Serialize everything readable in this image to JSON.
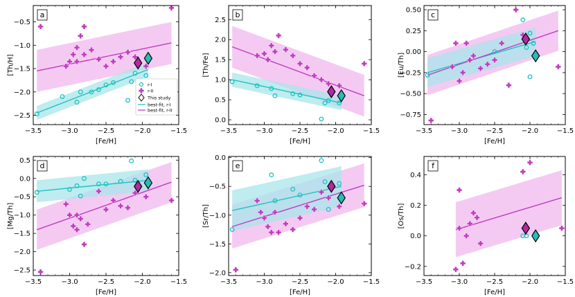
{
  "colors": {
    "r1": "#1fc2c2",
    "r1_band": "#a8e6ea",
    "r2": "#c23cc2",
    "r2_band": "#f0b8ee",
    "star_r1": "#2bbab6",
    "star_r2": "#b02aa0"
  },
  "legend": {
    "r1": "r-I",
    "r2": "r-II",
    "study": "This study",
    "fit_r1": "best-fit, r-I",
    "fit_r2": "best-fit, r-II"
  },
  "chart_data": [
    {
      "type": "scatter",
      "panel": "a",
      "xlabel": "[Fe/H]",
      "ylabel": "[Th/H]",
      "xlim": [
        -3.5,
        -1.5
      ],
      "ylim": [
        -2.7,
        -0.15
      ],
      "xticks": [
        -3.5,
        -3.0,
        -2.5,
        -2.0,
        -1.5
      ],
      "xtick_labels": [
        "−3.5",
        "−3.0",
        "−2.5",
        "−2.0",
        "−1.5"
      ],
      "yticks": [
        -2.5,
        -2.0,
        -1.5,
        -1.0,
        -0.5
      ],
      "ytick_labels": [
        "−2.5",
        "−2.0",
        "−1.5",
        "−1.0",
        "−0.5"
      ],
      "r1_points": [
        [
          -3.45,
          -2.47
        ],
        [
          -3.1,
          -2.1
        ],
        [
          -2.9,
          -2.22
        ],
        [
          -2.85,
          -2.0
        ],
        [
          -2.7,
          -2.0
        ],
        [
          -2.6,
          -1.95
        ],
        [
          -2.5,
          -1.85
        ],
        [
          -2.4,
          -1.8
        ],
        [
          -2.2,
          -2.18
        ],
        [
          -2.15,
          -1.78
        ],
        [
          -2.1,
          -1.6
        ],
        [
          -1.95,
          -1.65
        ]
      ],
      "r2_points": [
        [
          -3.4,
          -0.6
        ],
        [
          -3.05,
          -1.45
        ],
        [
          -3.0,
          -1.35
        ],
        [
          -2.95,
          -1.2
        ],
        [
          -2.9,
          -1.05
        ],
        [
          -2.9,
          -1.35
        ],
        [
          -2.85,
          -0.8
        ],
        [
          -2.8,
          -0.6
        ],
        [
          -2.8,
          -1.2
        ],
        [
          -2.7,
          -1.1
        ],
        [
          -2.6,
          -1.3
        ],
        [
          -2.5,
          -1.45
        ],
        [
          -2.4,
          -1.35
        ],
        [
          -2.3,
          -1.25
        ],
        [
          -2.2,
          -1.15
        ],
        [
          -2.1,
          -1.25
        ],
        [
          -1.95,
          -1.45
        ],
        [
          -1.6,
          -0.2
        ]
      ],
      "fit_r1": [
        [
          -3.45,
          -2.45
        ],
        [
          -1.92,
          -1.52
        ]
      ],
      "band_r1": 0.15,
      "fit_r2": [
        [
          -3.45,
          -1.55
        ],
        [
          -1.6,
          -0.95
        ]
      ],
      "band_r2": 0.45,
      "study_r2": [
        -2.06,
        -1.38
      ],
      "study_r1": [
        -1.92,
        -1.28
      ],
      "show_legend": true
    },
    {
      "type": "scatter",
      "panel": "b",
      "xlabel": "[Fe/H]",
      "ylabel": "[Th/Fe]",
      "xlim": [
        -3.5,
        -1.5
      ],
      "ylim": [
        -0.12,
        2.85
      ],
      "xticks": [
        -3.5,
        -3.0,
        -2.5,
        -2.0,
        -1.5
      ],
      "xtick_labels": [
        "−3.5",
        "−3.0",
        "−2.5",
        "−2.0",
        "−1.5"
      ],
      "yticks": [
        0.0,
        0.5,
        1.0,
        1.5,
        2.0,
        2.5
      ],
      "ytick_labels": [
        "0.0",
        "0.5",
        "1.0",
        "1.5",
        "2.0",
        "2.5"
      ],
      "r1_points": [
        [
          -3.45,
          0.95
        ],
        [
          -3.1,
          0.85
        ],
        [
          -2.9,
          0.78
        ],
        [
          -2.85,
          0.6
        ],
        [
          -2.6,
          0.65
        ],
        [
          -2.5,
          0.62
        ],
        [
          -2.2,
          0.02
        ],
        [
          -2.15,
          0.42
        ],
        [
          -2.1,
          0.48
        ],
        [
          -1.95,
          0.42
        ]
      ],
      "r2_points": [
        [
          -3.4,
          2.6
        ],
        [
          -3.1,
          1.6
        ],
        [
          -3.0,
          1.65
        ],
        [
          -2.95,
          1.5
        ],
        [
          -2.9,
          1.85
        ],
        [
          -2.85,
          1.7
        ],
        [
          -2.8,
          2.1
        ],
        [
          -2.7,
          1.75
        ],
        [
          -2.6,
          1.6
        ],
        [
          -2.5,
          1.4
        ],
        [
          -2.4,
          1.3
        ],
        [
          -2.3,
          1.1
        ],
        [
          -2.2,
          1.0
        ],
        [
          -2.1,
          0.9
        ],
        [
          -1.95,
          0.85
        ],
        [
          -1.6,
          1.4
        ]
      ],
      "fit_r1": [
        [
          -3.45,
          1.0
        ],
        [
          -1.92,
          0.42
        ]
      ],
      "band_r1": 0.18,
      "fit_r2": [
        [
          -3.45,
          1.82
        ],
        [
          -1.6,
          0.6
        ]
      ],
      "band_r2": 0.52,
      "study_r2": [
        -2.06,
        0.7
      ],
      "study_r1": [
        -1.92,
        0.6
      ],
      "show_legend": false
    },
    {
      "type": "scatter",
      "panel": "c",
      "xlabel": "[Fe/H]",
      "ylabel": "[Eu/Th]",
      "xlim": [
        -3.5,
        -1.5
      ],
      "ylim": [
        -0.87,
        0.55
      ],
      "xticks": [
        -3.5,
        -3.0,
        -2.5,
        -2.0,
        -1.5
      ],
      "xtick_labels": [
        "−3.5",
        "−3.0",
        "−2.5",
        "−2.0",
        "−1.5"
      ],
      "yticks": [
        -0.75,
        -0.5,
        -0.25,
        0.0,
        0.25,
        0.5
      ],
      "ytick_labels": [
        "−0.75",
        "−0.50",
        "−0.25",
        "0.00",
        "0.25",
        "0.50"
      ],
      "r1_points": [
        [
          -3.45,
          -0.28
        ],
        [
          -2.5,
          0.0
        ],
        [
          -2.1,
          0.38
        ],
        [
          -2.05,
          0.05
        ],
        [
          -2.0,
          0.22
        ],
        [
          -2.0,
          -0.3
        ],
        [
          -1.95,
          0.1
        ]
      ],
      "r2_points": [
        [
          -3.4,
          -0.82
        ],
        [
          -3.1,
          -0.18
        ],
        [
          -3.05,
          0.1
        ],
        [
          -3.0,
          -0.35
        ],
        [
          -2.95,
          -0.25
        ],
        [
          -2.9,
          0.1
        ],
        [
          -2.85,
          -0.1
        ],
        [
          -2.8,
          -0.05
        ],
        [
          -2.7,
          -0.2
        ],
        [
          -2.6,
          -0.15
        ],
        [
          -2.5,
          -0.1
        ],
        [
          -2.4,
          0.1
        ],
        [
          -2.3,
          -0.4
        ],
        [
          -2.2,
          0.5
        ],
        [
          -2.1,
          0.2
        ],
        [
          -1.6,
          -0.18
        ]
      ],
      "fit_r1": [
        [
          -3.45,
          -0.25
        ],
        [
          -1.92,
          0.12
        ]
      ],
      "band_r1": 0.17,
      "fit_r2": [
        [
          -3.45,
          -0.28
        ],
        [
          -1.6,
          0.25
        ]
      ],
      "band_r2": 0.24,
      "study_r2": [
        -2.06,
        0.15
      ],
      "study_r1": [
        -1.92,
        -0.05
      ],
      "show_legend": false
    },
    {
      "type": "scatter",
      "panel": "d",
      "xlabel": "[Fe/H]",
      "ylabel": "[Mg/Th]",
      "xlim": [
        -3.5,
        -1.5
      ],
      "ylim": [
        -2.65,
        0.6
      ],
      "xticks": [
        -3.5,
        -3.0,
        -2.5,
        -2.0,
        -1.5
      ],
      "xtick_labels": [
        "−3.5",
        "−3.0",
        "−2.5",
        "−2.0",
        "−1.5"
      ],
      "yticks": [
        -2.5,
        -2.0,
        -1.5,
        -1.0,
        -0.5,
        0.0,
        0.5
      ],
      "ytick_labels": [
        "−2.5",
        "−2.0",
        "−1.5",
        "−1.0",
        "−0.5",
        "0.0",
        "0.5"
      ],
      "r1_points": [
        [
          -3.45,
          -0.38
        ],
        [
          -3.0,
          -0.3
        ],
        [
          -2.9,
          -0.2
        ],
        [
          -2.85,
          -0.48
        ],
        [
          -2.8,
          0.0
        ],
        [
          -2.6,
          -0.15
        ],
        [
          -2.5,
          -0.15
        ],
        [
          -2.3,
          -0.08
        ],
        [
          -2.15,
          0.48
        ],
        [
          -2.1,
          -0.05
        ],
        [
          -1.95,
          0.1
        ]
      ],
      "r2_points": [
        [
          -3.4,
          -2.55
        ],
        [
          -3.05,
          -0.7
        ],
        [
          -3.0,
          -1.0
        ],
        [
          -2.95,
          -1.3
        ],
        [
          -2.9,
          -1.4
        ],
        [
          -2.9,
          -1.0
        ],
        [
          -2.85,
          -1.1
        ],
        [
          -2.8,
          -1.8
        ],
        [
          -2.75,
          -1.25
        ],
        [
          -2.6,
          -0.35
        ],
        [
          -2.5,
          -0.85
        ],
        [
          -2.4,
          -0.6
        ],
        [
          -2.3,
          -0.75
        ],
        [
          -2.2,
          -0.8
        ],
        [
          -2.1,
          -0.4
        ],
        [
          -1.95,
          -0.5
        ],
        [
          -1.6,
          -0.6
        ]
      ],
      "fit_r1": [
        [
          -3.45,
          -0.35
        ],
        [
          -1.92,
          -0.05
        ]
      ],
      "band_r1": 0.3,
      "fit_r2": [
        [
          -3.45,
          -1.4
        ],
        [
          -1.6,
          -0.1
        ]
      ],
      "band_r2": 0.55,
      "study_r2": [
        -2.06,
        -0.22
      ],
      "study_r1": [
        -1.92,
        -0.12
      ],
      "show_legend": false
    },
    {
      "type": "scatter",
      "panel": "e",
      "xlabel": "[Fe/H]",
      "ylabel": "[Sr/Th]",
      "xlim": [
        -3.5,
        -1.5
      ],
      "ylim": [
        -2.05,
        0.02
      ],
      "xticks": [
        -3.5,
        -3.0,
        -2.5,
        -2.0,
        -1.5
      ],
      "xtick_labels": [
        "−3.5",
        "−3.0",
        "−2.5",
        "−2.0",
        "−1.5"
      ],
      "yticks": [
        -2.0,
        -1.5,
        -1.0,
        -0.5,
        0.0
      ],
      "ytick_labels": [
        "−2.0",
        "−1.5",
        "−1.0",
        "−0.5",
        "0.0"
      ],
      "r1_points": [
        [
          -3.45,
          -1.25
        ],
        [
          -2.9,
          -0.3
        ],
        [
          -2.85,
          -0.75
        ],
        [
          -2.6,
          -0.55
        ],
        [
          -2.5,
          -0.65
        ],
        [
          -2.2,
          -0.05
        ],
        [
          -2.15,
          -0.42
        ],
        [
          -2.1,
          -0.9
        ],
        [
          -1.95,
          -0.45
        ]
      ],
      "r2_points": [
        [
          -3.4,
          -1.95
        ],
        [
          -3.1,
          -0.75
        ],
        [
          -3.05,
          -0.95
        ],
        [
          -3.0,
          -1.05
        ],
        [
          -2.95,
          -1.2
        ],
        [
          -2.9,
          -1.3
        ],
        [
          -2.85,
          -0.95
        ],
        [
          -2.8,
          -1.3
        ],
        [
          -2.7,
          -1.15
        ],
        [
          -2.6,
          -1.25
        ],
        [
          -2.5,
          -1.05
        ],
        [
          -2.4,
          -0.85
        ],
        [
          -2.3,
          -0.9
        ],
        [
          -2.2,
          -0.6
        ],
        [
          -2.1,
          -0.7
        ],
        [
          -1.95,
          -0.85
        ],
        [
          -1.6,
          -0.8
        ]
      ],
      "fit_r1": [
        [
          -3.45,
          -0.92
        ],
        [
          -1.92,
          -0.5
        ]
      ],
      "band_r1": 0.35,
      "fit_r2": [
        [
          -3.45,
          -1.2
        ],
        [
          -1.6,
          -0.48
        ]
      ],
      "band_r2": 0.38,
      "study_r2": [
        -2.06,
        -0.5
      ],
      "study_r1": [
        -1.92,
        -0.7
      ],
      "show_legend": false
    },
    {
      "type": "scatter",
      "panel": "f",
      "xlabel": "[Fe/H]",
      "ylabel": "[Os/Th]",
      "xlim": [
        -3.5,
        -1.5
      ],
      "ylim": [
        -0.26,
        0.52
      ],
      "xticks": [
        -3.5,
        -3.0,
        -2.5,
        -2.0,
        -1.5
      ],
      "xtick_labels": [
        "−3.5",
        "−3.0",
        "−2.5",
        "−2.0",
        "−1.5"
      ],
      "yticks": [
        -0.2,
        0.0,
        0.2,
        0.4
      ],
      "ytick_labels": [
        "−0.2",
        "0.0",
        "0.2",
        "0.4"
      ],
      "r1_points": [
        [
          -2.1,
          0.0
        ],
        [
          -2.05,
          0.0
        ]
      ],
      "r2_points": [
        [
          -3.05,
          -0.22
        ],
        [
          -3.0,
          0.05
        ],
        [
          -3.0,
          0.3
        ],
        [
          -2.95,
          -0.18
        ],
        [
          -2.9,
          0.0
        ],
        [
          -2.85,
          0.08
        ],
        [
          -2.8,
          0.15
        ],
        [
          -2.75,
          0.12
        ],
        [
          -2.7,
          -0.05
        ],
        [
          -2.1,
          0.42
        ],
        [
          -2.0,
          0.48
        ],
        [
          -1.55,
          0.05
        ]
      ],
      "fit_r1": null,
      "band_r1": 0,
      "fit_r2": [
        [
          -3.05,
          0.04
        ],
        [
          -1.55,
          0.25
        ]
      ],
      "band_r2": 0.18,
      "study_r2": [
        -2.06,
        0.05
      ],
      "study_r1": [
        -1.92,
        0.0
      ],
      "show_legend": false
    }
  ]
}
